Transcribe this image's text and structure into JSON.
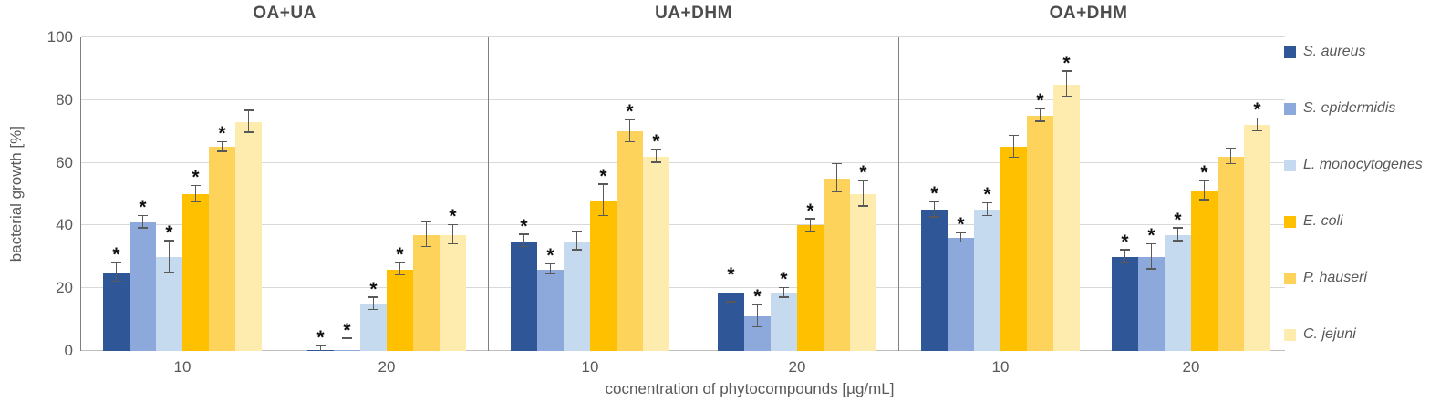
{
  "chart_data": {
    "type": "bar",
    "ylabel": "bacterial growth [%]",
    "xlabel": "cocnentration of phytocompounds  [µg/mL]",
    "ylim": [
      0,
      100
    ],
    "yticks": [
      0,
      20,
      40,
      60,
      80,
      100
    ],
    "categories": [
      "10",
      "20"
    ],
    "grid": "horizontal",
    "legend_position": "right",
    "sig_marker": "*",
    "series": [
      {
        "name": "S. aureus",
        "color": "#2f5697"
      },
      {
        "name": "S. epidermidis",
        "color": "#8da9db"
      },
      {
        "name": "L. monocytogenes",
        "color": "#c5d9ef"
      },
      {
        "name": "E. coli",
        "color": "#ffc000"
      },
      {
        "name": "P. hauseri",
        "color": "#fdd35c"
      },
      {
        "name": "C. jejuni",
        "color": "#fdecae"
      }
    ],
    "panels": [
      {
        "title": "OA+UA",
        "groups": [
          {
            "label": "10",
            "values": [
              25,
              41,
              30,
              50,
              65,
              73
            ],
            "errors": [
              3,
              2,
              5,
              2.5,
              1.5,
              3.5
            ],
            "sig": [
              true,
              true,
              true,
              true,
              true,
              false
            ]
          },
          {
            "label": "20",
            "values": [
              0.4,
              0.4,
              15,
              26,
              37,
              37
            ],
            "errors": [
              1.2,
              3.5,
              2,
              2,
              4,
              3
            ],
            "sig": [
              true,
              true,
              true,
              true,
              false,
              true
            ]
          }
        ]
      },
      {
        "title": "UA+DHM",
        "groups": [
          {
            "label": "10",
            "values": [
              35,
              26,
              35,
              48,
              70,
              62
            ],
            "errors": [
              2,
              1.5,
              3,
              5,
              3.5,
              2
            ],
            "sig": [
              true,
              true,
              false,
              true,
              true,
              true
            ]
          },
          {
            "label": "20",
            "values": [
              18.5,
              11,
              18.5,
              40,
              55,
              50
            ],
            "errors": [
              3,
              3.5,
              1.5,
              2,
              4.5,
              4
            ],
            "sig": [
              true,
              true,
              true,
              true,
              false,
              true
            ]
          }
        ]
      },
      {
        "title": "OA+DHM",
        "groups": [
          {
            "label": "10",
            "values": [
              45,
              36,
              45,
              65,
              75,
              85
            ],
            "errors": [
              2.5,
              1.5,
              2,
              3.5,
              2,
              4
            ],
            "sig": [
              true,
              true,
              true,
              false,
              true,
              true
            ]
          },
          {
            "label": "20",
            "values": [
              30,
              30,
              37,
              51,
              62,
              72
            ],
            "errors": [
              2,
              4,
              2,
              3,
              2.5,
              2
            ],
            "sig": [
              true,
              true,
              true,
              true,
              false,
              true
            ]
          }
        ]
      }
    ]
  }
}
